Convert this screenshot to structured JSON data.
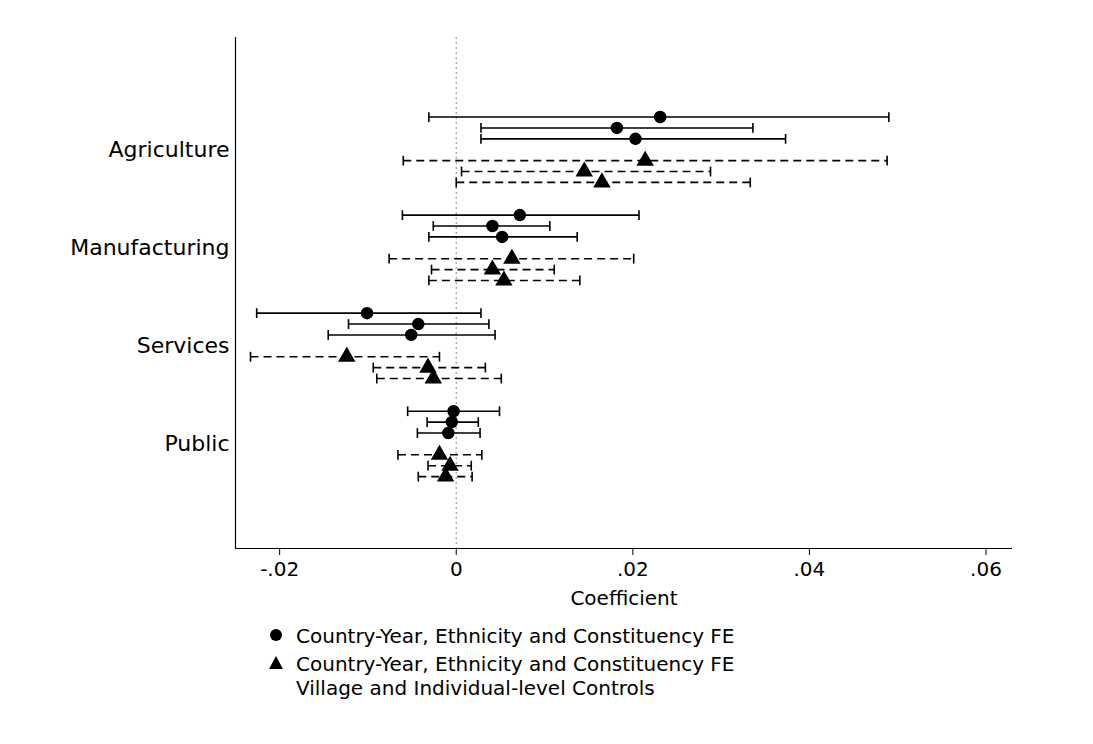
{
  "chart_data": {
    "type": "coefficient",
    "orientation": "horizontal",
    "x_label": "Coefficient",
    "categories": [
      "Agriculture",
      "Manufacturing",
      "Services",
      "Public"
    ],
    "xlim": [
      -0.025,
      0.063
    ],
    "xticks": [
      {
        "value": -0.02,
        "label": "-.02"
      },
      {
        "value": 0,
        "label": "0"
      },
      {
        "value": 0.02,
        "label": ".02"
      },
      {
        "value": 0.04,
        "label": ".04"
      },
      {
        "value": 0.06,
        "label": ".06"
      }
    ],
    "reference_x": 0,
    "grid": false,
    "series": [
      {
        "name": "Country-Year, Ethnicity and Constituency FE",
        "marker": "circle",
        "line_style": "solid",
        "color": "#000000",
        "values": [
          [
            0.0231,
            0.0182,
            0.0203
          ],
          [
            0.0072,
            0.0041,
            0.0052
          ],
          [
            -0.0101,
            -0.0043,
            -0.0051
          ],
          [
            -0.0003,
            -0.0005,
            -0.0009
          ]
        ],
        "ci_low": [
          [
            -0.0031,
            0.0028,
            0.0028
          ],
          [
            -0.0061,
            -0.0026,
            -0.0031
          ],
          [
            -0.0226,
            -0.0122,
            -0.0145
          ],
          [
            -0.0055,
            -0.0033,
            -0.0044
          ]
        ],
        "ci_high": [
          [
            0.049,
            0.0336,
            0.0373
          ],
          [
            0.0207,
            0.0106,
            0.0137
          ],
          [
            0.0028,
            0.0037,
            0.0044
          ],
          [
            0.0049,
            0.0025,
            0.0027
          ]
        ]
      },
      {
        "name": "Country-Year, Ethnicity and Constituency FE\nVillage and Individual-level Controls",
        "marker": "triangle",
        "line_style": "dashed",
        "color": "#000000",
        "values": [
          [
            0.0214,
            0.0145,
            0.0165
          ],
          [
            0.0063,
            0.0041,
            0.0054
          ],
          [
            -0.0124,
            -0.0032,
            -0.0026
          ],
          [
            -0.0019,
            -0.0007,
            -0.0012
          ]
        ],
        "ci_low": [
          [
            -0.006,
            0.0006,
            0.0
          ],
          [
            -0.0076,
            -0.0028,
            -0.0031
          ],
          [
            -0.0233,
            -0.0094,
            -0.009
          ],
          [
            -0.0066,
            -0.0032,
            -0.0043
          ]
        ],
        "ci_high": [
          [
            0.0488,
            0.0288,
            0.0333
          ],
          [
            0.0201,
            0.0111,
            0.014
          ],
          [
            -0.0019,
            0.0033,
            0.0051
          ],
          [
            0.0029,
            0.0017,
            0.0018
          ]
        ]
      }
    ]
  }
}
